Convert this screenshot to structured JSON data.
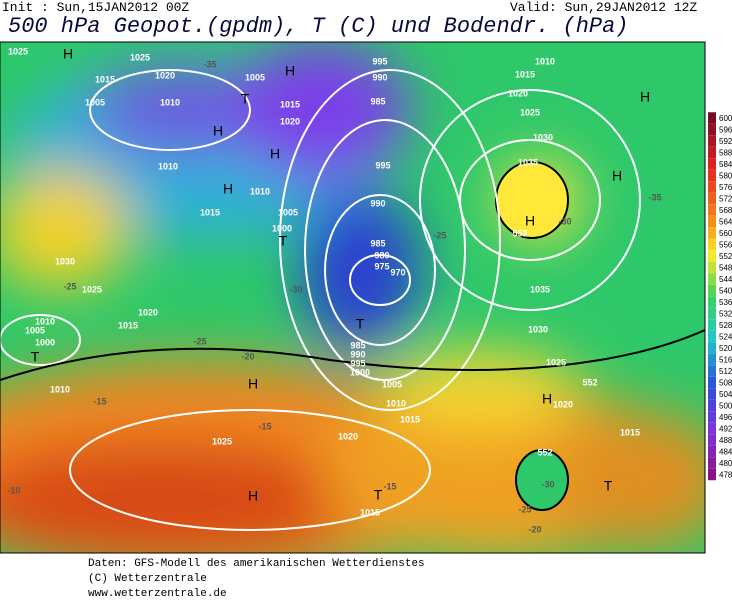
{
  "header": {
    "init": "Init : Sun,15JAN2012 00Z",
    "valid": "Valid: Sun,29JAN2012 12Z",
    "title": "500 hPa Geopot.(gpdm), T (C) und Bodendr. (hPa)"
  },
  "color_scale": {
    "ticks": [
      600,
      596,
      592,
      588,
      584,
      580,
      576,
      572,
      568,
      564,
      560,
      556,
      552,
      548,
      544,
      540,
      536,
      532,
      528,
      524,
      520,
      516,
      512,
      508,
      504,
      500,
      496,
      492,
      488,
      484,
      480,
      478
    ]
  },
  "map_labels": [
    "1025",
    "H",
    "1025",
    "1020",
    "1015",
    "1005",
    "1010",
    "1005",
    "995",
    "990",
    "H",
    "T",
    "1015",
    "1020",
    "985",
    "H",
    "H",
    "995",
    "1010",
    "H",
    "1010",
    "1015",
    "1005",
    "1000",
    "T",
    "990",
    "985",
    "980",
    "975",
    "970",
    "T",
    "985",
    "990",
    "995",
    "1000",
    "1005",
    "1010",
    "1015",
    "1020",
    "1025",
    "1010",
    "1030",
    "1025",
    "1020",
    "1015",
    "1010",
    "1005",
    "1000",
    "T",
    "H",
    "H",
    "1015",
    "T",
    "H",
    "1035",
    "1030",
    "1025",
    "1020",
    "1015",
    "1010",
    "H",
    "H",
    "1035",
    "1030",
    "1025",
    "1020",
    "1015",
    "T",
    "H",
    "552",
    "552",
    "552",
    "-35",
    "-30",
    "-25",
    "-20",
    "-15",
    "-10",
    "-15",
    "-20",
    "-25",
    "-30",
    "-35",
    "-30",
    "-25",
    "-25",
    "-15"
  ],
  "footer": [
    "Daten: GFS-Modell des amerikanischen Wetterdienstes",
    "(C) Wetterzentrale",
    "www.wetterzentrale.de"
  ]
}
